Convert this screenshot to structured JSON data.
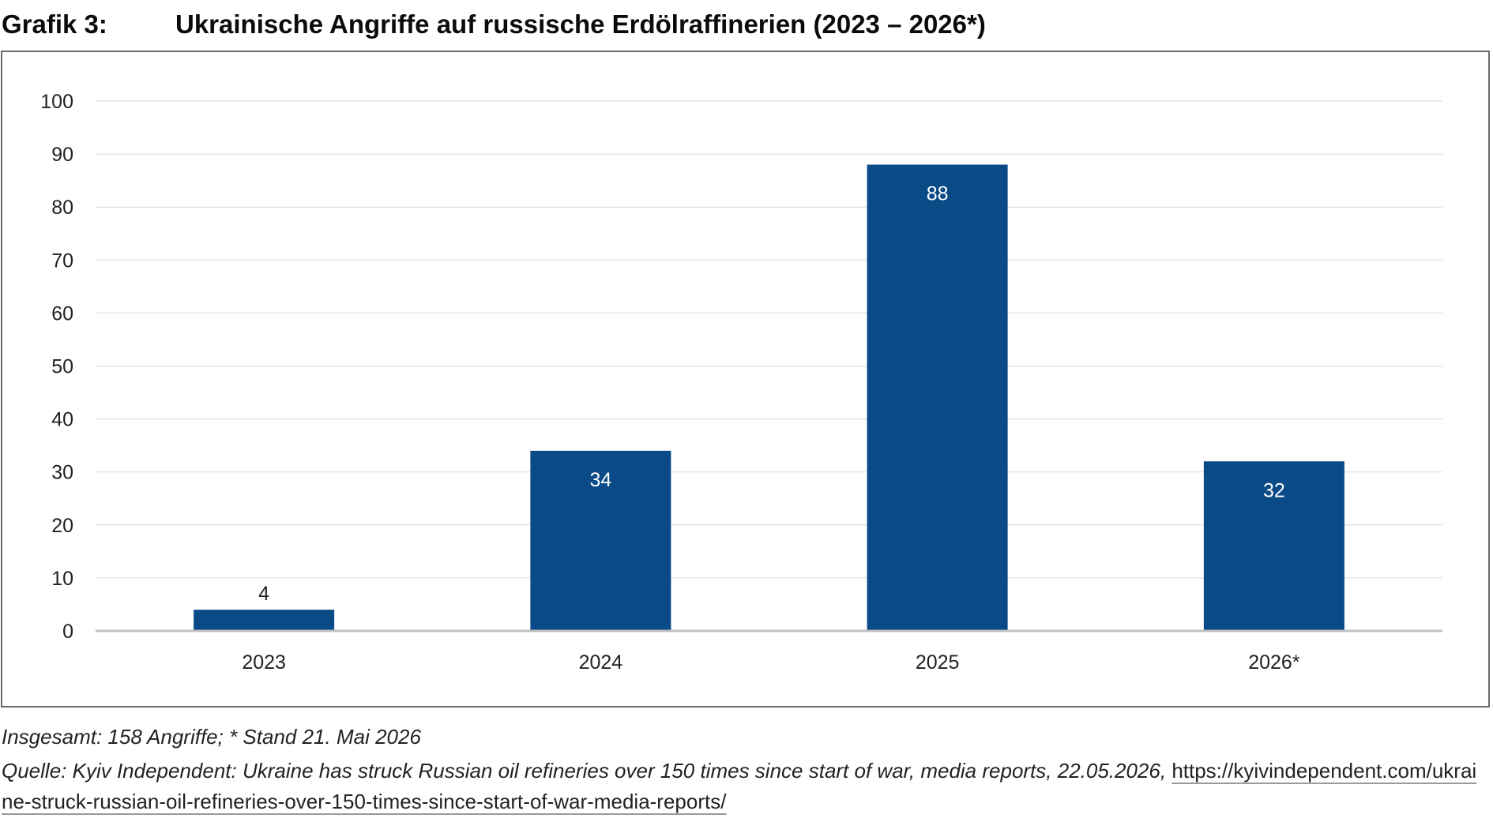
{
  "header": {
    "label": "Grafik 3:",
    "title": "Ukrainische Angriffe auf russische Erdölraffinerien (2023 – 2026*)"
  },
  "chart_data": {
    "type": "bar",
    "categories": [
      "2023",
      "2024",
      "2025",
      "2026*"
    ],
    "values": [
      4,
      34,
      88,
      32
    ],
    "data_labels": [
      "4",
      "34",
      "88",
      "32"
    ],
    "ylim": [
      0,
      100
    ],
    "yticks": [
      "0",
      "10",
      "20",
      "30",
      "40",
      "50",
      "60",
      "70",
      "80",
      "90",
      "100"
    ],
    "grid": true,
    "bar_color": "#0a4a87",
    "xlabel": "",
    "ylabel": ""
  },
  "footer": {
    "note": "Insgesamt: 158 Angriffe; * Stand 21. Mai 2026",
    "source_text": "Quelle: Kyiv Independent: Ukraine has struck Russian oil refineries over 150 times since start of war, media reports, 22.05.2026,",
    "source_url": "https://kyivindependent.com/ukraine-struck-russian-oil-refineries-over-150-times-since-start-of-war-media-reports/"
  }
}
